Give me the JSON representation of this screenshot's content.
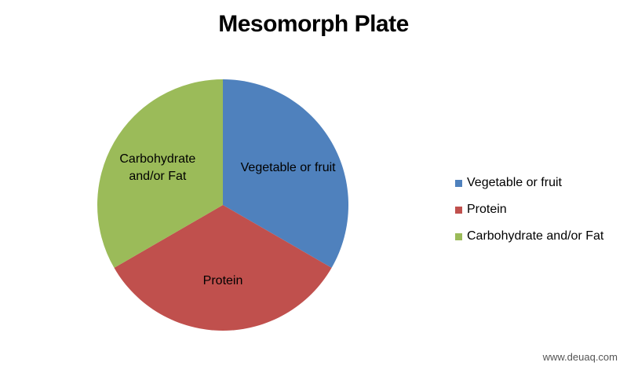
{
  "chart_data": {
    "type": "pie",
    "title": "Mesomorph Plate",
    "slices": [
      {
        "name": "Vegetable or fruit",
        "value": 33.33,
        "color": "#4F81BD",
        "label_lines": [
          "Vegetable or fruit"
        ]
      },
      {
        "name": "Protein",
        "value": 33.33,
        "color": "#C0504D",
        "label_lines": [
          "Protein"
        ]
      },
      {
        "name": "Carbohydrate and/or Fat",
        "value": 33.34,
        "color": "#9BBB59",
        "label_lines": [
          "Carbohydrate",
          "and/or Fat"
        ]
      }
    ],
    "legend_position": "right",
    "start_angle_deg": 0,
    "direction": "clockwise"
  },
  "watermark": "www.deuaq.com"
}
